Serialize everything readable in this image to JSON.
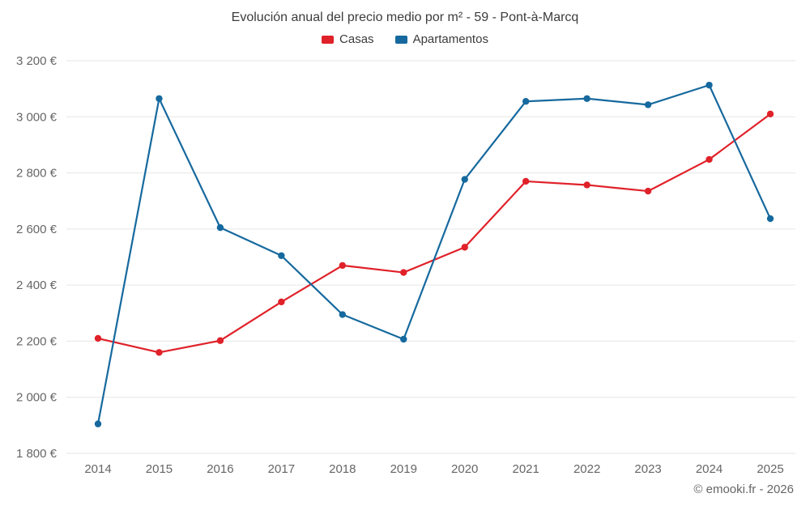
{
  "chart": {
    "title": "Evolución anual del precio medio por m² - 59 - Pont-à-Marcq",
    "copyright": "© emooki.fr - 2026"
  },
  "chart_data": {
    "type": "line",
    "title": "Evolución anual del precio medio por m² - 59 - Pont-à-Marcq",
    "categories": [
      "2014",
      "2015",
      "2016",
      "2017",
      "2018",
      "2019",
      "2020",
      "2021",
      "2022",
      "2023",
      "2024",
      "2025"
    ],
    "series": [
      {
        "name": "Casas",
        "color": "#e02129",
        "values": [
          2210,
          2160,
          2202,
          2340,
          2470,
          2445,
          2535,
          2770,
          2757,
          2735,
          2848,
          3010
        ]
      },
      {
        "name": "Apartamentos",
        "color": "#16699e",
        "values": [
          1905,
          3065,
          2605,
          2505,
          2295,
          2207,
          2777,
          3055,
          3065,
          3043,
          3113,
          2637
        ]
      }
    ],
    "ylim": [
      1800,
      3200
    ],
    "yticks": [
      {
        "value": 1800,
        "label": "1 800 €"
      },
      {
        "value": 2000,
        "label": "2 000 €"
      },
      {
        "value": 2200,
        "label": "2 200 €"
      },
      {
        "value": 2400,
        "label": "2 400 €"
      },
      {
        "value": 2600,
        "label": "2 600 €"
      },
      {
        "value": 2800,
        "label": "2 800 €"
      },
      {
        "value": 3000,
        "label": "3 000 €"
      },
      {
        "value": 3200,
        "label": "3 200 €"
      }
    ],
    "xlabel": "",
    "ylabel": "",
    "grid": true,
    "grid_color": "#e6e6e6",
    "legend_position": "top",
    "legend": [
      "Casas",
      "Apartamentos"
    ]
  }
}
